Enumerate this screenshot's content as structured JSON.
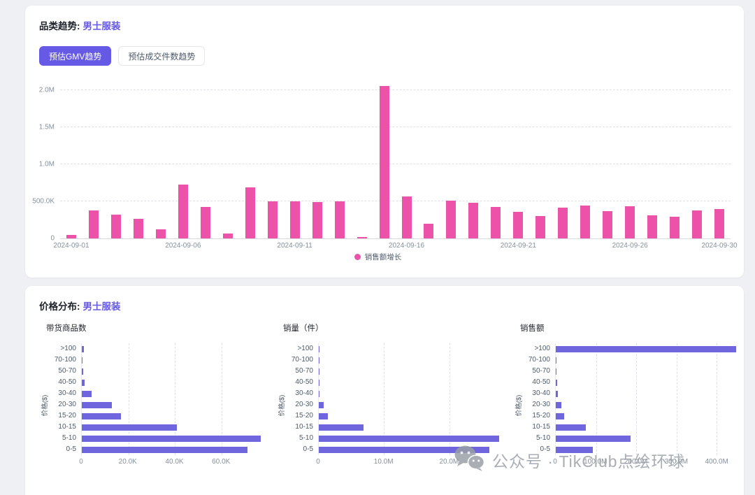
{
  "trend_card": {
    "title_prefix": "品类趋势:",
    "title_category": "男士服装",
    "tabs": [
      {
        "label": "预估GMV趋势",
        "active": true
      },
      {
        "label": "预估成交件数趋势",
        "active": false
      }
    ]
  },
  "price_card": {
    "title_prefix": "价格分布:",
    "title_category": "男士服装"
  },
  "watermark": {
    "icon": "wechat-icon",
    "text": "公众号 · TikClub点绘环球",
    "color": "#9aa0a6"
  },
  "colors": {
    "accent": "#6659e6",
    "trend_bar": "#ec52a8",
    "price_bar": "#6f65dd",
    "axis_text": "#86909c"
  },
  "chart_data": [
    {
      "id": "gmv-trend",
      "type": "bar",
      "title": "预估GMV趋势",
      "series_name": "销售额增长",
      "color": "#ec52a8",
      "grid": "dashed-horizontal",
      "legend_position": "bottom-center",
      "ylim": [
        0,
        2150000
      ],
      "yticks": [
        {
          "label": "0",
          "value": 0
        },
        {
          "label": "500.0K",
          "value": 500000
        },
        {
          "label": "1.0M",
          "value": 1000000
        },
        {
          "label": "1.5M",
          "value": 1500000
        },
        {
          "label": "2.0M",
          "value": 2000000
        }
      ],
      "categories": [
        "2024-09-01",
        "2024-09-02",
        "2024-09-03",
        "2024-09-04",
        "2024-09-05",
        "2024-09-06",
        "2024-09-07",
        "2024-09-08",
        "2024-09-09",
        "2024-09-10",
        "2024-09-11",
        "2024-09-12",
        "2024-09-13",
        "2024-09-14",
        "2024-09-15",
        "2024-09-16",
        "2024-09-17",
        "2024-09-18",
        "2024-09-19",
        "2024-09-20",
        "2024-09-21",
        "2024-09-22",
        "2024-09-23",
        "2024-09-24",
        "2024-09-25",
        "2024-09-26",
        "2024-09-27",
        "2024-09-28",
        "2024-09-29",
        "2024-09-30"
      ],
      "values": [
        45000,
        380000,
        325000,
        265000,
        120000,
        730000,
        420000,
        62000,
        685000,
        500000,
        500000,
        495000,
        500000,
        22000,
        2060000,
        565000,
        195000,
        505000,
        480000,
        425000,
        360000,
        300000,
        415000,
        440000,
        365000,
        438000,
        310000,
        297000,
        382000,
        392000
      ],
      "xtick_indices": [
        0,
        5,
        10,
        15,
        20,
        25,
        29
      ]
    },
    {
      "id": "product-count",
      "type": "bar-horizontal",
      "title": "带货商品数",
      "ylabel": "价格($)",
      "color": "#6f65dd",
      "grid": "dashed-vertical",
      "xlim": [
        0,
        80000
      ],
      "xticks": [
        {
          "label": "0",
          "value": 0
        },
        {
          "label": "20.0K",
          "value": 20000
        },
        {
          "label": "40.0K",
          "value": 40000
        },
        {
          "label": "60.0K",
          "value": 60000
        }
      ],
      "categories": [
        ">100",
        "70-100",
        "50-70",
        "40-50",
        "30-40",
        "20-30",
        "15-20",
        "10-15",
        "5-10",
        "0-5"
      ],
      "values": [
        800,
        300,
        600,
        1200,
        4300,
        13000,
        16800,
        41000,
        77000,
        71200
      ]
    },
    {
      "id": "sales-volume",
      "type": "bar-horizontal",
      "title": "销量（件）",
      "ylabel": "价格($)",
      "color": "#6f65dd",
      "grid": "dashed-vertical",
      "xlim": [
        0,
        28500000
      ],
      "xticks": [
        {
          "label": "0",
          "value": 0
        },
        {
          "label": "10.0M",
          "value": 10000000
        },
        {
          "label": "20.0M",
          "value": 20000000
        }
      ],
      "categories": [
        ">100",
        "70-100",
        "50-70",
        "40-50",
        "30-40",
        "20-30",
        "15-20",
        "10-15",
        "5-10",
        "0-5"
      ],
      "values": [
        60000,
        30000,
        40000,
        80000,
        150000,
        700000,
        1350000,
        6900000,
        27600000,
        26100000
      ]
    },
    {
      "id": "sales-amount",
      "type": "bar-horizontal",
      "title": "销售额",
      "ylabel": "价格($)",
      "color": "#6f65dd",
      "grid": "dashed-vertical",
      "xlim": [
        0,
        462000000
      ],
      "xticks": [
        {
          "label": "0",
          "value": 0
        },
        {
          "label": "100.0M",
          "value": 100000000
        },
        {
          "label": "200.0M",
          "value": 200000000
        },
        {
          "label": "300.0M",
          "value": 300000000
        },
        {
          "label": "400.0M",
          "value": 400000000
        }
      ],
      "categories": [
        ">100",
        "70-100",
        "50-70",
        "40-50",
        "30-40",
        "20-30",
        "15-20",
        "10-15",
        "5-10",
        "0-5"
      ],
      "values": [
        448000000,
        1500000,
        2000000,
        3000000,
        4500000,
        14000000,
        20000000,
        74000000,
        186000000,
        92000000
      ]
    }
  ]
}
